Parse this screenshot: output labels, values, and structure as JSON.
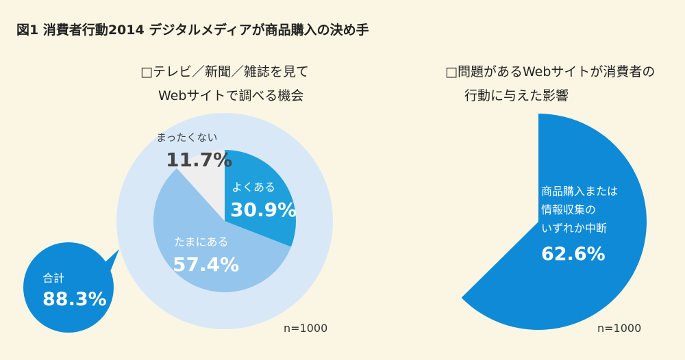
{
  "figure_title": "図1 消費者行動2014 デジタルメディアが商品購入の決め手",
  "colors": {
    "background": "#fbf6e4",
    "outer_ring": "#d9e8f6",
    "often": "#1fa0dc",
    "sometimes": "#94c5ec",
    "never": "#eeeeee",
    "total_bubble": "#0e8ad6",
    "right_pie": "#0e8ad6",
    "title_text": "#222222",
    "label_dark": "#444444",
    "label_light": "#ffffff"
  },
  "chart_data": [
    {
      "type": "pie",
      "title_lines": [
        "□テレビ／新聞／雑誌を見て",
        "Webサイトで調べる機会"
      ],
      "slices": [
        {
          "label": "よくある",
          "value": 30.9,
          "value_label": "30.9%",
          "color": "#1fa0dc"
        },
        {
          "label": "たまにある",
          "value": 57.4,
          "value_label": "57.4%",
          "color": "#94c5ec"
        },
        {
          "label": "まったくない",
          "value": 11.7,
          "value_label": "11.7%",
          "color": "#eeeeee"
        }
      ],
      "total": {
        "label": "合計",
        "value": 88.3,
        "value_label": "88.3%"
      },
      "n_label": "n=1000"
    },
    {
      "type": "pie",
      "title_lines": [
        "□問題があるWebサイトが消費者の",
        "行動に与えた影響"
      ],
      "slices": [
        {
          "label_lines": [
            "商品購入または",
            "情報収集の",
            "いずれか中断"
          ],
          "value": 62.6,
          "value_label": "62.6%",
          "color": "#0e8ad6"
        }
      ],
      "n_label": "n=1000"
    }
  ]
}
